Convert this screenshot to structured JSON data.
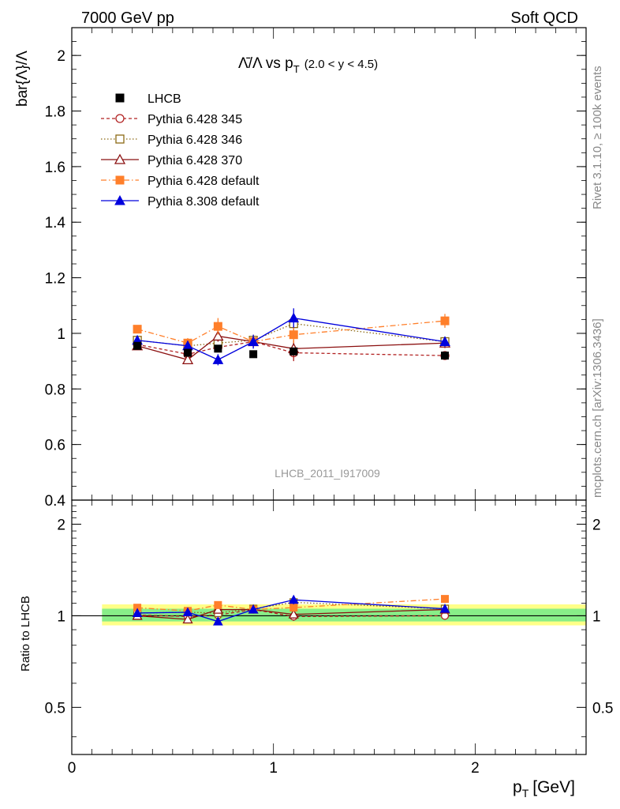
{
  "header": {
    "left": "7000 GeV pp",
    "right": "Soft QCD"
  },
  "side": {
    "rivet": "Rivet 3.1.10, ≥ 100k events",
    "mcplots": "mcplots.cern.ch [arXiv:1306.3436]"
  },
  "chart_data": {
    "type": "line",
    "title_main": "Λ̄/Λ vs p",
    "title_sub": "T",
    "title_range": "(2.0 < y < 4.5)",
    "ylabel": "bar{Λ}/Λ",
    "ylabel_ratio": "Ratio to LHCB",
    "xlabel": "p",
    "xlabel_sub": "T",
    "xlabel_unit": "[GeV]",
    "watermark": "LHCB_2011_I917009",
    "xlim": [
      0,
      2.55
    ],
    "ylim": [
      0.4,
      2.1
    ],
    "ratio_ylim": [
      0.35,
      2.4
    ],
    "x_ticks": [
      "0",
      "1",
      "2"
    ],
    "y_ticks": [
      "0.4",
      "0.6",
      "0.8",
      "1",
      "1.2",
      "1.4",
      "1.6",
      "1.8",
      "2"
    ],
    "ratio_ticks": [
      "0.5",
      "1",
      "2"
    ],
    "band_range": [
      0.15,
      2.55
    ],
    "x": [
      0.325,
      0.575,
      0.725,
      0.9,
      1.1,
      1.85
    ],
    "data": {
      "name": "LHCB",
      "values": [
        0.955,
        0.93,
        0.945,
        0.925,
        0.935,
        0.92
      ],
      "color": "#000000"
    },
    "series": [
      {
        "name": "Pythia 6.428 345",
        "color": "#b22222",
        "dash": "4,3",
        "marker": "circle-open",
        "values": [
          0.96,
          0.925,
          0.95,
          0.97,
          0.93,
          0.92
        ],
        "err": [
          0.012,
          0.015,
          0.018,
          0.02,
          0.03,
          0.012
        ]
      },
      {
        "name": "Pythia 6.428 346",
        "color": "#8b6914",
        "dash": "1.5,2.5",
        "marker": "square-open",
        "values": [
          0.975,
          0.955,
          0.965,
          0.975,
          1.035,
          0.97
        ],
        "err": [
          0.012,
          0.015,
          0.018,
          0.02,
          0.03,
          0.018
        ]
      },
      {
        "name": "Pythia 6.428 370",
        "color": "#8b1010",
        "dash": "",
        "marker": "triangle-open",
        "values": [
          0.955,
          0.905,
          0.99,
          0.97,
          0.945,
          0.965
        ],
        "err": [
          0.012,
          0.015,
          0.02,
          0.02,
          0.03,
          0.018
        ]
      },
      {
        "name": "Pythia 6.428 default",
        "color": "#ff7f2a",
        "dash": "7,3,1.5,3",
        "marker": "square",
        "values": [
          1.015,
          0.965,
          1.025,
          0.97,
          0.995,
          1.045
        ],
        "err": [
          0.012,
          0.018,
          0.03,
          0.02,
          0.03,
          0.025
        ]
      },
      {
        "name": "Pythia 8.308 default",
        "color": "#0000dd",
        "dash": "",
        "marker": "triangle",
        "values": [
          0.975,
          0.955,
          0.905,
          0.97,
          1.055,
          0.97
        ],
        "err": [
          0.012,
          0.018,
          0.02,
          0.025,
          0.035,
          0.018
        ]
      }
    ]
  }
}
